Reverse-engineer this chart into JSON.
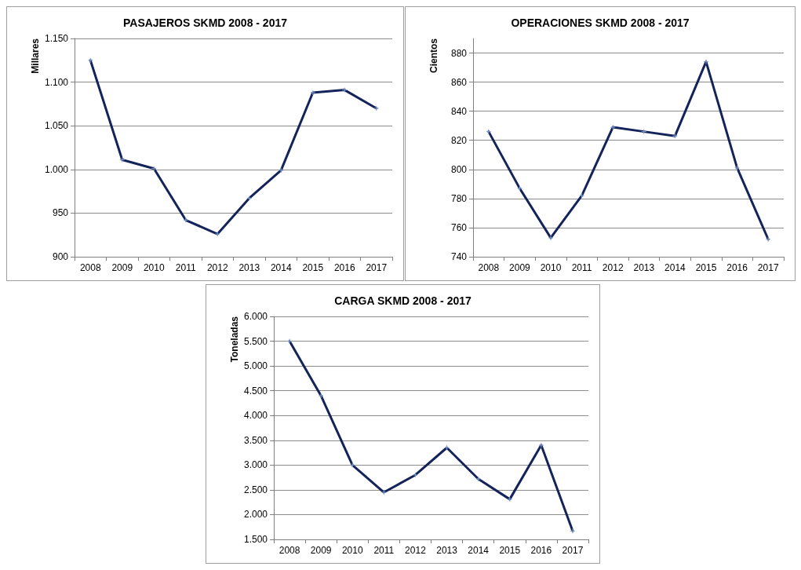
{
  "chart_data": [
    {
      "type": "line",
      "title": "PASAJEROS SKMD 2008 - 2017",
      "ylabel": "Millares",
      "categories": [
        "2008",
        "2009",
        "2010",
        "2011",
        "2012",
        "2013",
        "2014",
        "2015",
        "2016",
        "2017"
      ],
      "series": [
        {
          "color": "#14245a",
          "values": [
            1125,
            1011,
            1001,
            942,
            926,
            967,
            999,
            1088,
            1091,
            1070
          ]
        }
      ],
      "ylim": [
        900,
        1150
      ],
      "yticks": [
        {
          "value": 900,
          "label": "900"
        },
        {
          "value": 950,
          "label": "950"
        },
        {
          "value": 1000,
          "label": "1.000"
        },
        {
          "value": 1050,
          "label": "1.050"
        },
        {
          "value": 1100,
          "label": "1.100"
        },
        {
          "value": 1150,
          "label": "1.150"
        }
      ],
      "grid": "y",
      "marker": "cross",
      "line_style": "solid"
    },
    {
      "type": "line",
      "title": "OPERACIONES SKMD 2008 - 2017",
      "ylabel": "Cientos",
      "categories": [
        "2008",
        "2009",
        "2010",
        "2011",
        "2012",
        "2013",
        "2014",
        "2015",
        "2016",
        "2017"
      ],
      "series": [
        {
          "color": "#14245a",
          "values": [
            826,
            787,
            753,
            782,
            829,
            826,
            823,
            874,
            801,
            752
          ]
        }
      ],
      "ylim": [
        740,
        890
      ],
      "yticks": [
        740,
        760,
        780,
        800,
        820,
        840,
        860,
        880
      ],
      "grid": "y",
      "marker": "cross",
      "line_style": "solid"
    },
    {
      "type": "line",
      "title": "CARGA SKMD 2008 - 2017",
      "ylabel": "Toneladas",
      "categories": [
        "2008",
        "2009",
        "2010",
        "2011",
        "2012",
        "2013",
        "2014",
        "2015",
        "2016",
        "2017"
      ],
      "series": [
        {
          "color": "#14245a",
          "values": [
            5500,
            4400,
            3000,
            2450,
            2800,
            3350,
            2720,
            2310,
            3400,
            1670
          ]
        }
      ],
      "ylim": [
        1500,
        6000
      ],
      "yticks": [
        {
          "value": 1500,
          "label": "1.500"
        },
        {
          "value": 2000,
          "label": "2.000"
        },
        {
          "value": 2500,
          "label": "2.500"
        },
        {
          "value": 3000,
          "label": "3.000"
        },
        {
          "value": 3500,
          "label": "3.500"
        },
        {
          "value": 4000,
          "label": "4.000"
        },
        {
          "value": 4500,
          "label": "4.500"
        },
        {
          "value": 5000,
          "label": "5.000"
        },
        {
          "value": 5500,
          "label": "5.500"
        },
        {
          "value": 6000,
          "label": "6.000"
        }
      ],
      "grid": "y",
      "marker": "cross",
      "line_style": "solid"
    }
  ]
}
